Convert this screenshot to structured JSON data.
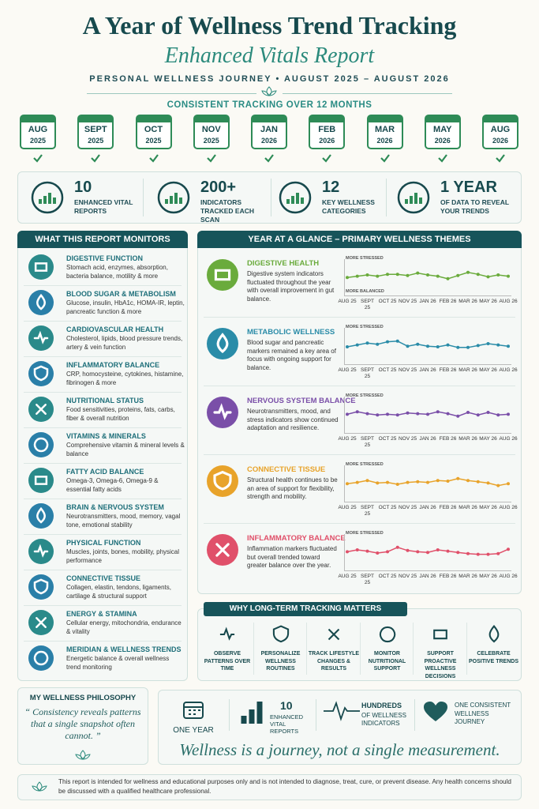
{
  "header": {
    "title": "A Year of Wellness Trend Tracking",
    "subtitle": "Enhanced Vitals Report",
    "journey": "PERSONAL WELLNESS JOURNEY • AUGUST 2025 – AUGUST 2026"
  },
  "timeline": {
    "heading": "CONSISTENT TRACKING OVER 12 MONTHS",
    "items": [
      {
        "month": "AUG",
        "year": "2025"
      },
      {
        "month": "SEPT",
        "year": "2025"
      },
      {
        "month": "OCT",
        "year": "2025"
      },
      {
        "month": "NOV",
        "year": "2025"
      },
      {
        "month": "JAN",
        "year": "2026"
      },
      {
        "month": "FEB",
        "year": "2026"
      },
      {
        "month": "MAR",
        "year": "2026"
      },
      {
        "month": "MAY",
        "year": "2026"
      },
      {
        "month": "AUG",
        "year": "2026"
      }
    ]
  },
  "stats": [
    {
      "number": "10",
      "label": "ENHANCED VITAL REPORTS"
    },
    {
      "number": "200+",
      "label": "INDICATORS TRACKED EACH SCAN"
    },
    {
      "number": "12",
      "label": "KEY WELLNESS CATEGORIES"
    },
    {
      "number": "1 YEAR",
      "label": "OF DATA TO REVEAL YOUR TRENDS"
    }
  ],
  "monitors": {
    "heading": "WHAT THIS REPORT MONITORS",
    "items": [
      {
        "title": "DIGESTIVE FUNCTION",
        "desc": "Stomach acid, enzymes, absorption, bacteria balance, motility & more"
      },
      {
        "title": "BLOOD SUGAR & METABOLISM",
        "desc": "Glucose, insulin, HbA1c, HOMA-IR, leptin, pancreatic function & more"
      },
      {
        "title": "CARDIOVASCULAR HEALTH",
        "desc": "Cholesterol, lipids, blood pressure trends, artery & vein function"
      },
      {
        "title": "INFLAMMATORY BALANCE",
        "desc": "CRP, homocysteine, cytokines, histamine, fibrinogen & more"
      },
      {
        "title": "NUTRITIONAL STATUS",
        "desc": "Food sensitivities, proteins, fats, carbs, fiber & overall nutrition"
      },
      {
        "title": "VITAMINS & MINERALS",
        "desc": "Comprehensive vitamin & mineral levels & balance"
      },
      {
        "title": "FATTY ACID BALANCE",
        "desc": "Omega-3, Omega-6, Omega-9 & essential fatty acids"
      },
      {
        "title": "BRAIN & NERVOUS SYSTEM",
        "desc": "Neurotransmitters, mood, memory, vagal tone, emotional stability"
      },
      {
        "title": "PHYSICAL FUNCTION",
        "desc": "Muscles, joints, bones, mobility, physical performance"
      },
      {
        "title": "CONNECTIVE TISSUE",
        "desc": "Collagen, elastin, tendons, ligaments, cartilage & structural support"
      },
      {
        "title": "ENERGY & STAMINA",
        "desc": "Cellular energy, mitochondria, endurance & vitality"
      },
      {
        "title": "MERIDIAN & WELLNESS TRENDS",
        "desc": "Energetic balance & overall wellness trend monitoring"
      }
    ]
  },
  "glance_heading": "YEAR AT A GLANCE – PRIMARY WELLNESS THEMES",
  "chart_data": [
    {
      "type": "line",
      "title": "DIGESTIVE HEALTH",
      "description": "Digestive system indicators fluctuated throughout the year with overall improvement in gut balance.",
      "top_label": "MORE STRESSED",
      "bottom_label": "MORE BALANCED",
      "color": "#6aab3c",
      "x": [
        0,
        1,
        2,
        3,
        4,
        5,
        6,
        7,
        8,
        9,
        10,
        11,
        12,
        13,
        14,
        15,
        16
      ],
      "values": [
        5.2,
        5.6,
        6.0,
        5.6,
        6.2,
        6.2,
        5.8,
        6.6,
        6.0,
        5.6,
        4.8,
        5.8,
        6.8,
        6.2,
        5.4,
        6.0,
        5.6
      ],
      "xlim": [
        0,
        16
      ],
      "ylim": [
        0,
        10
      ],
      "xticks": [
        {
          "value": 0,
          "label": "AUG 25"
        },
        {
          "value": 2,
          "label": "SEPT 25"
        },
        {
          "value": 4,
          "label": "OCT 25"
        },
        {
          "value": 6,
          "label": "NOV 25"
        },
        {
          "value": 8,
          "label": "JAN 26"
        },
        {
          "value": 10,
          "label": "FEB 26"
        },
        {
          "value": 12,
          "label": "MAR 26"
        },
        {
          "value": 14,
          "label": "MAY 26"
        },
        {
          "value": 16,
          "label": "AUG 26"
        }
      ]
    },
    {
      "type": "line",
      "title": "METABOLIC WELLNESS",
      "description": "Blood sugar and pancreatic markers remained a key area of focus with ongoing support for balance.",
      "top_label": "MORE STRESSED",
      "color": "#2a8ca8",
      "x": [
        0,
        1,
        2,
        3,
        4,
        5,
        6,
        7,
        8,
        9,
        10,
        11,
        12,
        13,
        14,
        15,
        16
      ],
      "values": [
        5.0,
        5.6,
        6.2,
        5.8,
        6.6,
        6.8,
        5.2,
        5.8,
        5.2,
        5.0,
        5.6,
        4.8,
        4.8,
        5.4,
        6.0,
        5.6,
        5.2
      ],
      "xlim": [
        0,
        16
      ],
      "ylim": [
        0,
        10
      ],
      "xticks": [
        {
          "value": 0,
          "label": "AUG 25"
        },
        {
          "value": 2,
          "label": "SEPT 25"
        },
        {
          "value": 4,
          "label": "OCT 25"
        },
        {
          "value": 6,
          "label": "NOV 25"
        },
        {
          "value": 8,
          "label": "JAN 26"
        },
        {
          "value": 10,
          "label": "FEB 26"
        },
        {
          "value": 12,
          "label": "MAR 26"
        },
        {
          "value": 14,
          "label": "MAY 26"
        },
        {
          "value": 16,
          "label": "AUG 26"
        }
      ]
    },
    {
      "type": "line",
      "title": "NERVOUS SYSTEM BALANCE",
      "description": "Neurotransmitters, mood, and stress indicators show continued adaptation and resilience.",
      "top_label": "MORE STRESSED",
      "color": "#7a4fa8",
      "x": [
        0,
        1,
        2,
        3,
        4,
        5,
        6,
        7,
        8,
        9,
        10,
        11,
        12,
        13,
        14,
        15,
        16
      ],
      "values": [
        5.4,
        6.2,
        5.6,
        5.2,
        5.4,
        5.2,
        5.8,
        5.6,
        5.4,
        6.2,
        5.6,
        4.8,
        6.0,
        5.2,
        6.0,
        5.2,
        5.4
      ],
      "xlim": [
        0,
        16
      ],
      "ylim": [
        0,
        10
      ],
      "xticks": [
        {
          "value": 0,
          "label": "AUG 25"
        },
        {
          "value": 2,
          "label": "SEPT 25"
        },
        {
          "value": 4,
          "label": "OCT 25"
        },
        {
          "value": 6,
          "label": "NOV 25"
        },
        {
          "value": 8,
          "label": "JAN 26"
        },
        {
          "value": 10,
          "label": "FEB 26"
        },
        {
          "value": 12,
          "label": "MAR 26"
        },
        {
          "value": 14,
          "label": "MAY 26"
        },
        {
          "value": 16,
          "label": "AUG 26"
        }
      ]
    },
    {
      "type": "line",
      "title": "CONNECTIVE TISSUE",
      "description": "Structural health continues to be an area of support for flexibility, strength and mobility.",
      "top_label": "MORE STRESSED",
      "color": "#e8a32a",
      "x": [
        0,
        1,
        2,
        3,
        4,
        5,
        6,
        7,
        8,
        9,
        10,
        11,
        12,
        13,
        14,
        15,
        16
      ],
      "values": [
        5.2,
        5.6,
        6.2,
        5.4,
        5.6,
        5.0,
        5.6,
        5.8,
        5.6,
        6.2,
        6.0,
        6.8,
        6.2,
        5.8,
        5.4,
        4.6,
        5.2
      ],
      "xlim": [
        0,
        16
      ],
      "ylim": [
        0,
        10
      ],
      "xticks": [
        {
          "value": 0,
          "label": "AUG 25"
        },
        {
          "value": 2,
          "label": "SEPT 25"
        },
        {
          "value": 4,
          "label": "OCT 25"
        },
        {
          "value": 6,
          "label": "NOV 25"
        },
        {
          "value": 8,
          "label": "JAN 26"
        },
        {
          "value": 10,
          "label": "FEB 26"
        },
        {
          "value": 12,
          "label": "MAR 26"
        },
        {
          "value": 14,
          "label": "MAY 26"
        },
        {
          "value": 16,
          "label": "AUG 26"
        }
      ]
    },
    {
      "type": "line",
      "title": "INFLAMMATORY BALANCE",
      "description": "Inflammation markers fluctuated but overall trended toward greater balance over the year.",
      "top_label": "MORE STRESSED",
      "color": "#e0506a",
      "x": [
        0,
        1,
        2,
        3,
        4,
        5,
        6,
        7,
        8,
        9,
        10,
        11,
        12,
        13,
        14,
        15,
        16
      ],
      "values": [
        5.4,
        6.0,
        5.6,
        5.0,
        5.4,
        6.8,
        5.8,
        5.4,
        5.2,
        6.0,
        5.6,
        5.2,
        4.8,
        4.6,
        4.6,
        4.8,
        6.2
      ],
      "xlim": [
        0,
        16
      ],
      "ylim": [
        0,
        10
      ],
      "xticks": [
        {
          "value": 0,
          "label": "AUG 25"
        },
        {
          "value": 2,
          "label": "SEPT 25"
        },
        {
          "value": 4,
          "label": "OCT 25"
        },
        {
          "value": 6,
          "label": "NOV 25"
        },
        {
          "value": 8,
          "label": "JAN 26"
        },
        {
          "value": 10,
          "label": "FEB 26"
        },
        {
          "value": 12,
          "label": "MAR 26"
        },
        {
          "value": 14,
          "label": "MAY 26"
        },
        {
          "value": 16,
          "label": "AUG 26"
        }
      ]
    }
  ],
  "why": {
    "heading": "WHY LONG-TERM TRACKING MATTERS",
    "items": [
      "OBSERVE PATTERNS OVER TIME",
      "PERSONALIZE WELLNESS ROUTINES",
      "TRACK LIFESTYLE CHANGES & RESULTS",
      "MONITOR NUTRITIONAL SUPPORT",
      "SUPPORT PROACTIVE WELLNESS DECISIONS",
      "CELEBRATE POSITIVE TRENDS"
    ]
  },
  "philosophy": {
    "heading": "MY WELLNESS PHILOSOPHY",
    "quote": "“ Consistency reveals patterns that a single snapshot often cannot. ”"
  },
  "summary": {
    "one_year": "ONE YEAR",
    "reports_number": "10",
    "reports_label": "ENHANCED VITAL REPORTS",
    "indicators_title": "HUNDREDS",
    "indicators_label": "OF WELLNESS INDICATORS",
    "journey": "ONE CONSISTENT WELLNESS JOURNEY",
    "tagline": "Wellness is a journey, not a single measurement."
  },
  "footer": "This report is intended for wellness and educational purposes only and is not intended to diagnose, treat, cure, or prevent disease. Any health concerns should be discussed with a qualified healthcare professional."
}
